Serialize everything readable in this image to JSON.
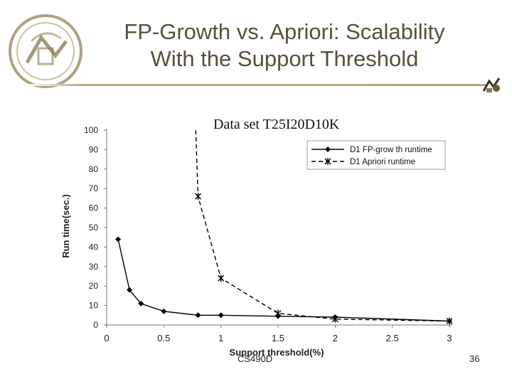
{
  "slide": {
    "title_line1": "FP-Growth vs. Apriori: Scalability",
    "title_line2": "With the Support Threshold",
    "footer_course": "CS490D",
    "footer_page": "36",
    "title_color": "#58503a",
    "accent_color": "#b3a67f",
    "logo_icon": "university-seal-icon",
    "corner_icon": "clipart-figure-icon"
  },
  "chart_data": {
    "type": "line",
    "title": "Data set T25I20D10K",
    "xlabel": "Support threshold(%)",
    "ylabel": "Run time(sec.)",
    "xlim": [
      0,
      3
    ],
    "ylim": [
      0,
      100
    ],
    "xticks": [
      0,
      0.5,
      1,
      1.5,
      2,
      2.5,
      3
    ],
    "xtick_labels": [
      "0",
      "0.5",
      "1",
      "1.5",
      "2",
      "2.5",
      "3"
    ],
    "yticks": [
      0,
      10,
      20,
      30,
      40,
      50,
      60,
      70,
      80,
      90,
      100
    ],
    "ytick_labels": [
      "0",
      "10",
      "20",
      "30",
      "40",
      "50",
      "60",
      "70",
      "80",
      "90",
      "100"
    ],
    "grid": false,
    "legend_position": "top-right",
    "series": [
      {
        "name": "D1 FP-grow th runtime",
        "marker": "diamond",
        "line": "solid",
        "color": "#000000",
        "x": [
          0.1,
          0.2,
          0.3,
          0.5,
          0.8,
          1,
          1.5,
          2,
          3
        ],
        "y": [
          44,
          18,
          11,
          7,
          5,
          5,
          4.5,
          4,
          2
        ]
      },
      {
        "name": "D1 Apriori runtime",
        "marker": "asterisk",
        "line": "dashed",
        "color": "#000000",
        "x": [
          0.78,
          0.8,
          1,
          1.5,
          2,
          3
        ],
        "y": [
          100,
          66,
          24,
          6,
          3,
          2
        ]
      }
    ]
  }
}
